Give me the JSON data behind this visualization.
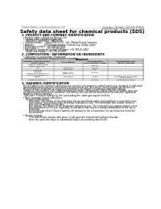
{
  "bg_color": "#ffffff",
  "header_left": "Product Name: Lithium Ion Battery Cell",
  "header_right_line1": "Substance Number: SDS-049-000015",
  "header_right_line2": "Establishment / Revision: Dec 7, 2018",
  "title": "Safety data sheet for chemical products (SDS)",
  "section1_title": "1. PRODUCT AND COMPANY IDENTIFICATION",
  "section1_lines": [
    "  • Product name: Lithium Ion Battery Cell",
    "  • Product code: Cylindrical-type cell",
    "      INR18650J, INR18650L, INR18650A",
    "  • Company name:    Sanyo Electric Co., Ltd., Mobile Energy Company",
    "  • Address:              2001 Kamizunakami, Sumoto-City, Hyogo, Japan",
    "  • Telephone number:  +81-799-26-4111",
    "  • Fax number:           +81-799-26-4123",
    "  • Emergency telephone number (daytime): +81-799-26-2662",
    "      (Night and holiday): +81-799-26-4101"
  ],
  "section2_title": "2. COMPOSITION / INFORMATION ON INGREDIENTS",
  "section2_sub": "  • Substance or preparation: Preparation",
  "section2_sub2": "  - Information about the chemical nature of product:",
  "table_col_labels": [
    "Common chemical name /\nBrand name",
    "CAS number",
    "Concentration /\nConcentration range",
    "Classification and\nhazard labeling"
  ],
  "table_col_header": "Component",
  "table_rows": [
    [
      "Lithium cobalt oxide\n(LiMn-Co-Ni-O2)",
      "-",
      "30-60%",
      "-"
    ],
    [
      "Iron",
      "7439-89-6",
      "10-20%",
      "-"
    ],
    [
      "Aluminum",
      "7429-90-5",
      "2-5%",
      "-"
    ],
    [
      "Graphite\n(Pitch-made graphite-1)\n(Artificial graphite-1)",
      "17592-42-0\n17592-43-0",
      "10-20%",
      "-"
    ],
    [
      "Copper",
      "7440-50-8",
      "5-15%",
      "Sensitization of the skin\ngroup 1N-2"
    ],
    [
      "Organic electrolyte",
      "-",
      "10-20%",
      "Inflammable liquid"
    ]
  ],
  "section3_title": "3. HAZARDS IDENTIFICATION",
  "section3_text": [
    "  For the battery cell, chemical substances are stored in a hermetically sealed metal case, designed to withstand",
    "  temperatures and pressures encountered during normal use. As a result, during normal use, there is no",
    "  physical danger of ignition or aspiration and there is no danger of hazardous materials leakage.",
    "    However, if exposed to a fire, added mechanical shocks, decomposed, violent electric or battery miss-use,",
    "  the gas release valve(can be operated). The battery cell case will be breached at the extreme, hazardous",
    "  materials may be released.",
    "    Moreover, if heated strongly by the surrounding fire, some gas may be emitted."
  ],
  "section3_bullets": [
    "  • Most important hazard and effects:",
    "      Human health effects:",
    "          Inhalation: The release of the electrolyte has an anesthesia action and stimulates a respiratory tract.",
    "          Skin contact: The release of the electrolyte stimulates a skin. The electrolyte skin contact causes a",
    "          sore and stimulation on the skin.",
    "          Eye contact: The release of the electrolyte stimulates eyes. The electrolyte eye contact causes a sore",
    "          and stimulation on the eye. Especially, a substance that causes a strong inflammation of the eye is",
    "          contained.",
    "          Environmental effects: Since a battery cell remains in the environment, do not throw out it into the",
    "          environment.",
    "",
    "  • Specific hazards:",
    "          If the electrolyte contacts with water, it will generate detrimental hydrogen fluoride.",
    "          Since the used electrolyte is inflammable liquid, do not bring close to fire."
  ],
  "header_fs": 2.0,
  "title_fs": 4.2,
  "section_title_fs": 2.6,
  "body_fs": 1.9,
  "table_header_fs": 1.8,
  "table_body_fs": 1.75
}
